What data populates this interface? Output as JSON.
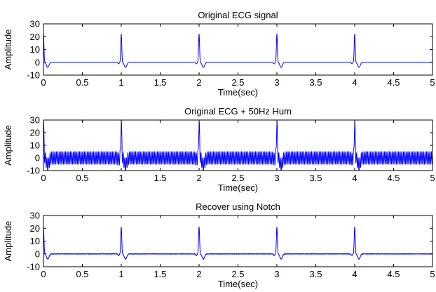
{
  "chart_data": [
    {
      "type": "line",
      "title": "Original ECG signal",
      "xlabel": "Time(sec)",
      "ylabel": "Amplitude",
      "xlim": [
        0,
        5
      ],
      "ylim": [
        -10,
        30
      ],
      "xticks": [
        "0",
        "0.5",
        "1",
        "1.5",
        "2",
        "2.5",
        "3",
        "3.5",
        "4",
        "4.5",
        "5"
      ],
      "yticks": [
        "-10",
        "0",
        "10",
        "20",
        "30"
      ],
      "grid": false,
      "color": "#0000ff",
      "series": [
        {
          "signal": "ecg",
          "beat_times": [
            0,
            1,
            2,
            3,
            4
          ],
          "r_peak": 22,
          "s_trough": -4,
          "baseline": 0,
          "hum_amplitude": 0,
          "noise_amplitude": 0
        }
      ]
    },
    {
      "type": "line",
      "title": "Original ECG + 50Hz Hum",
      "xlabel": "Time(sec)",
      "ylabel": "Amplitude",
      "xlim": [
        0,
        5
      ],
      "ylim": [
        -10,
        30
      ],
      "xticks": [
        "0",
        "0.5",
        "1",
        "1.5",
        "2",
        "2.5",
        "3",
        "3.5",
        "4",
        "4.5",
        "5"
      ],
      "yticks": [
        "-10",
        "0",
        "10",
        "20",
        "30"
      ],
      "grid": false,
      "color": "#0000ff",
      "series": [
        {
          "signal": "ecg + 50Hz hum",
          "beat_times": [
            0,
            1,
            2,
            3,
            4
          ],
          "r_peak": 27,
          "s_trough": -6,
          "baseline": 0,
          "hum_frequency_hz": 50,
          "hum_amplitude": 5,
          "noise_amplitude": 0
        }
      ]
    },
    {
      "type": "line",
      "title": "Recover using Notch",
      "xlabel": "Time(sec)",
      "ylabel": "Amplitude",
      "xlim": [
        0,
        5
      ],
      "ylim": [
        -10,
        30
      ],
      "xticks": [
        "0",
        "0.5",
        "1",
        "1.5",
        "2",
        "2.5",
        "3",
        "3.5",
        "4",
        "4.5",
        "5"
      ],
      "yticks": [
        "-10",
        "0",
        "10",
        "20",
        "30"
      ],
      "grid": false,
      "color": "#0000ff",
      "series": [
        {
          "signal": "notch filtered",
          "beat_times": [
            0,
            1,
            2,
            3,
            4
          ],
          "r_peak": 21,
          "s_trough": -4,
          "baseline": 0,
          "hum_amplitude": 0,
          "noise_amplitude": 0.4
        }
      ]
    }
  ]
}
